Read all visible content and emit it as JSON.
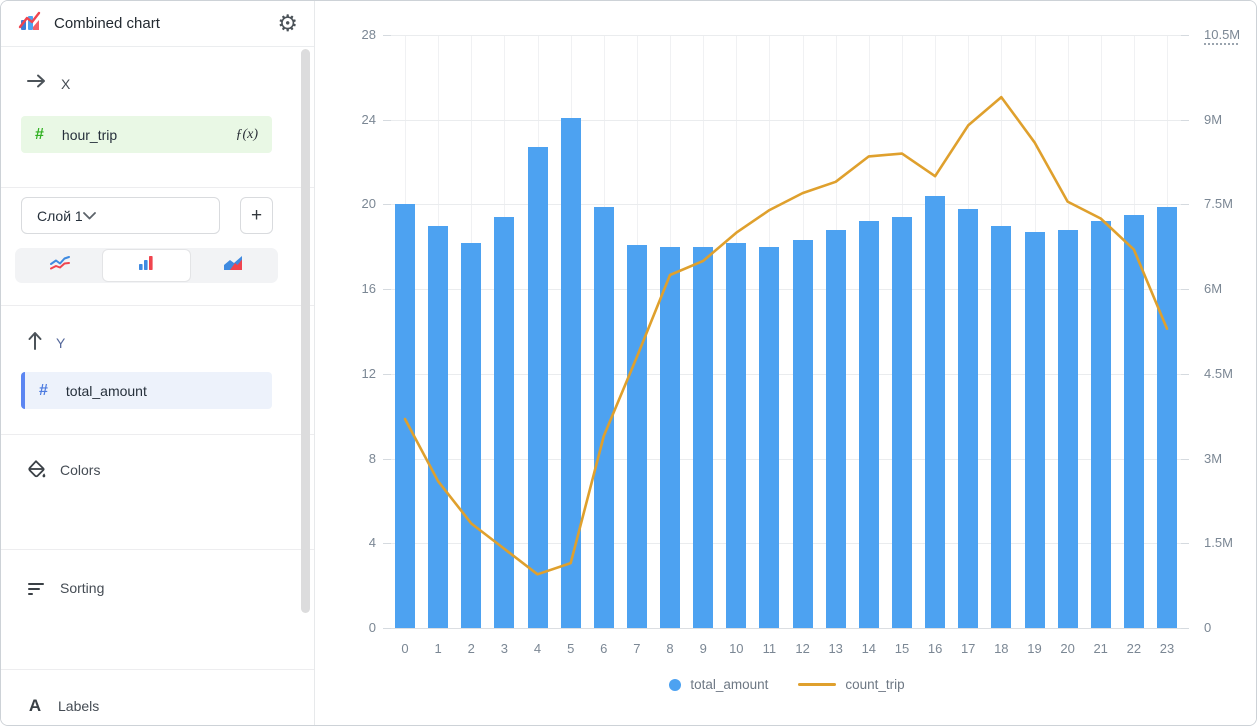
{
  "header": {
    "title": "Combined chart"
  },
  "sidebar": {
    "x_section": {
      "label": "X",
      "field": {
        "name": "hour_trip",
        "fx_label": "ƒ(x)"
      }
    },
    "layer": {
      "selected_option": "Слой 1",
      "add_button": "+"
    },
    "chart_types": [
      {
        "name": "line-chart",
        "selected": false
      },
      {
        "name": "bar-chart",
        "selected": true
      },
      {
        "name": "area-chart",
        "selected": false
      }
    ],
    "y_section": {
      "label": "Y",
      "field": {
        "name": "total_amount"
      }
    },
    "sections": [
      {
        "label": "Colors"
      },
      {
        "label": "Sorting"
      },
      {
        "label": "Labels"
      }
    ]
  },
  "colors": {
    "bar": "#4DA2F1",
    "line": "#DFA02D",
    "x_field_bg": "#E9F8E5",
    "x_field_hash": "#30B021",
    "y_field_bg": "#EDF2FB",
    "y_field_hash": "#4E7CE0",
    "y_field_accent": "#5C86F2"
  },
  "chart_data": {
    "type": "bar",
    "subtype": "combined bar + line, dual axis",
    "categories": [
      "0",
      "1",
      "2",
      "3",
      "4",
      "5",
      "6",
      "7",
      "8",
      "9",
      "10",
      "11",
      "12",
      "13",
      "14",
      "15",
      "16",
      "17",
      "18",
      "19",
      "20",
      "21",
      "22",
      "23"
    ],
    "xlabel": "hour_trip",
    "series": [
      {
        "name": "total_amount",
        "type": "bar",
        "axis": "left",
        "color": "#4DA2F1",
        "values": [
          20.0,
          19.0,
          18.2,
          19.4,
          22.7,
          24.1,
          19.9,
          18.1,
          18.0,
          18.0,
          18.2,
          18.0,
          18.3,
          18.8,
          19.2,
          19.4,
          20.4,
          19.8,
          19.0,
          18.7,
          18.8,
          19.2,
          19.5,
          19.9
        ]
      },
      {
        "name": "count_trip",
        "type": "line",
        "axis": "right",
        "color": "#DFA02D",
        "values_millions": [
          3.7,
          2.6,
          1.85,
          1.4,
          0.95,
          1.15,
          3.4,
          4.8,
          6.25,
          6.5,
          7.0,
          7.4,
          7.7,
          7.9,
          8.35,
          8.4,
          8.0,
          8.9,
          9.4,
          8.6,
          7.55,
          7.25,
          6.7,
          5.3
        ]
      }
    ],
    "left_axis": {
      "min": 0,
      "max": 28,
      "ticks": [
        "28",
        "24",
        "20",
        "16",
        "12",
        "8",
        "4",
        "0"
      ]
    },
    "right_axis": {
      "min": 0,
      "max_millions": 10.5,
      "ticks": [
        "10.5M",
        "9M",
        "7.5M",
        "6M",
        "4.5M",
        "3M",
        "1.5M",
        "0"
      ]
    },
    "grid": true,
    "legend_position": "bottom-center",
    "legend": [
      {
        "label": "total_amount",
        "marker": "dot",
        "color": "#4DA2F1"
      },
      {
        "label": "count_trip",
        "marker": "line",
        "color": "#DFA02D"
      }
    ]
  }
}
